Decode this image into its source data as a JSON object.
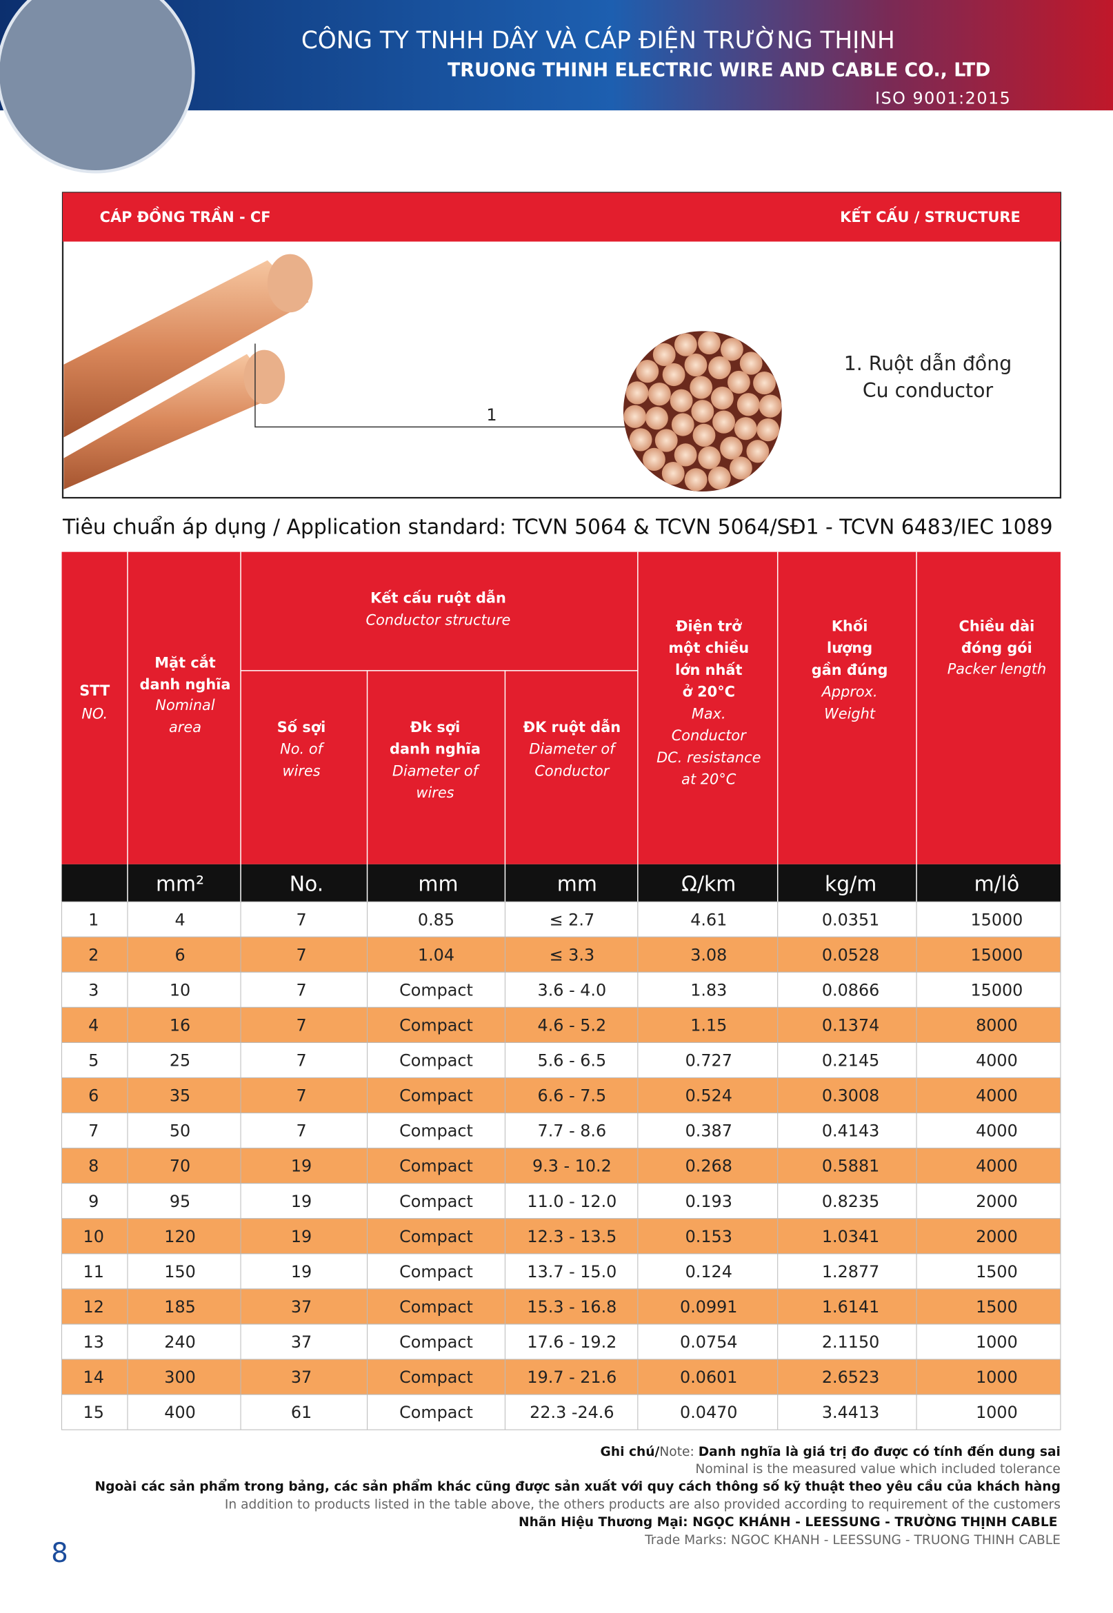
{
  "header": {
    "company_vi": "CÔNG TY TNHH DÂY VÀ CÁP ĐIỆN TRƯỜNG THỊNH",
    "company_en": "TRUONG THINH ELECTRIC WIRE AND CABLE CO., LTD",
    "iso": "ISO 9001:2015"
  },
  "product": {
    "name": "CÁP ĐỒNG TRẦN - CF",
    "structure_title": "KẾT CẤU / STRUCTURE",
    "callout": "1",
    "part_vi": "1. Ruột dẫn đồng",
    "part_en": "Cu conductor"
  },
  "standard": "Tiêu chuẩn áp dụng / Application standard: TCVN 5064 & TCVN 5064/SĐ1 - TCVN 6483/IEC 1089",
  "table": {
    "headers": {
      "stt": {
        "vi": [
          "STT"
        ],
        "en": [
          "NO."
        ]
      },
      "area": {
        "vi": [
          "Mặt cắt",
          "danh nghĩa"
        ],
        "en": [
          "Nominal",
          "area"
        ]
      },
      "structure": {
        "vi": [
          "Kết cấu ruột dẫn"
        ],
        "en": [
          "Conductor structure"
        ]
      },
      "wires": {
        "vi": [
          "Số sợi"
        ],
        "en": [
          "No. of",
          "wires"
        ]
      },
      "wire_dia": {
        "vi": [
          "Đk sợi",
          "danh nghĩa"
        ],
        "en": [
          "Diameter of",
          "wires"
        ]
      },
      "cond_dia": {
        "vi": [
          "ĐK ruột dẫn"
        ],
        "en": [
          "Diameter of",
          "Conductor"
        ]
      },
      "resistance": {
        "vi": [
          "Điện trở",
          "một chiều",
          "lớn nhất",
          "ở 20°C"
        ],
        "en": [
          "Max.",
          "Conductor",
          "DC. resistance",
          "at 20°C"
        ]
      },
      "weight": {
        "vi": [
          "Khối",
          "lượng",
          "gần đúng"
        ],
        "en": [
          "Approx.",
          "Weight"
        ]
      },
      "length": {
        "vi": [
          "Chiều dài",
          "đóng gói"
        ],
        "en": [
          "Packer length"
        ]
      }
    },
    "units": [
      "mm²",
      "No.",
      "mm",
      "mm",
      "Ω/km",
      "kg/m",
      "m/lô"
    ],
    "rows": [
      [
        "1",
        "4",
        "7",
        "0.85",
        "≤ 2.7",
        "4.61",
        "0.0351",
        "15000"
      ],
      [
        "2",
        "6",
        "7",
        "1.04",
        "≤ 3.3",
        "3.08",
        "0.0528",
        "15000"
      ],
      [
        "3",
        "10",
        "7",
        "Compact",
        "3.6 - 4.0",
        "1.83",
        "0.0866",
        "15000"
      ],
      [
        "4",
        "16",
        "7",
        "Compact",
        "4.6 - 5.2",
        "1.15",
        "0.1374",
        "8000"
      ],
      [
        "5",
        "25",
        "7",
        "Compact",
        "5.6 - 6.5",
        "0.727",
        "0.2145",
        "4000"
      ],
      [
        "6",
        "35",
        "7",
        "Compact",
        "6.6 - 7.5",
        "0.524",
        "0.3008",
        "4000"
      ],
      [
        "7",
        "50",
        "7",
        "Compact",
        "7.7 - 8.6",
        "0.387",
        "0.4143",
        "4000"
      ],
      [
        "8",
        "70",
        "19",
        "Compact",
        "9.3 - 10.2",
        "0.268",
        "0.5881",
        "4000"
      ],
      [
        "9",
        "95",
        "19",
        "Compact",
        "11.0 - 12.0",
        "0.193",
        "0.8235",
        "2000"
      ],
      [
        "10",
        "120",
        "19",
        "Compact",
        "12.3 - 13.5",
        "0.153",
        "1.0341",
        "2000"
      ],
      [
        "11",
        "150",
        "19",
        "Compact",
        "13.7 - 15.0",
        "0.124",
        "1.2877",
        "1500"
      ],
      [
        "12",
        "185",
        "37",
        "Compact",
        "15.3 - 16.8",
        "0.0991",
        "1.6141",
        "1500"
      ],
      [
        "13",
        "240",
        "37",
        "Compact",
        "17.6 - 19.2",
        "0.0754",
        "2.1150",
        "1000"
      ],
      [
        "14",
        "300",
        "37",
        "Compact",
        "19.7 - 21.6",
        "0.0601",
        "2.6523",
        "1000"
      ],
      [
        "15",
        "400",
        "61",
        "Compact",
        "22.3 -24.6",
        "0.0470",
        "3.4413",
        "1000"
      ]
    ]
  },
  "notes": {
    "label": "Ghi chú/",
    "label_en": "Note:",
    "nominal_vi": "Danh nghĩa là giá trị đo được có tính đến dung sai",
    "nominal_en": "Nominal is the measured value which included tolerance",
    "other_vi": "Ngoài các sản phẩm trong bảng, các sản phẩm khác cũng được sản xuất với quy cách thông số kỹ thuật theo yêu cầu của khách hàng",
    "other_en": "In addition to products listed in the table above, the others products are also provided according to requirement of the customers",
    "marks_vi": "Nhãn Hiệu Thương Mại: NGỌC KHÁNH - LEESSUNG - TRƯỜNG THỊNH CABLE",
    "marks_en": "Trade Marks: NGOC KHANH - LEESSUNG - TRUONG THINH CABLE"
  },
  "page_number": "8"
}
